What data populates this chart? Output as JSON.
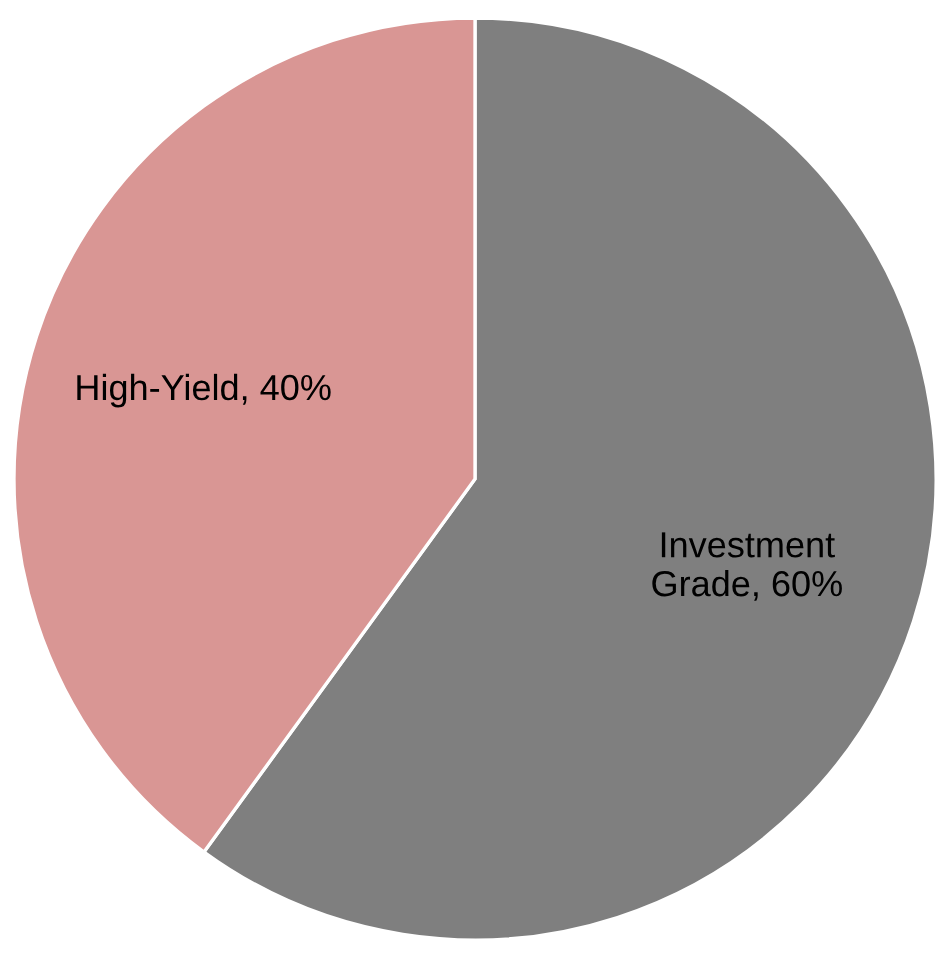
{
  "chart_data": {
    "type": "pie",
    "categories": [
      "Investment Grade",
      "High-Yield"
    ],
    "values": [
      60,
      40
    ],
    "colors": [
      "#7f7f7f",
      "#d99694"
    ],
    "value_labels": [
      "60%",
      "40%"
    ]
  }
}
